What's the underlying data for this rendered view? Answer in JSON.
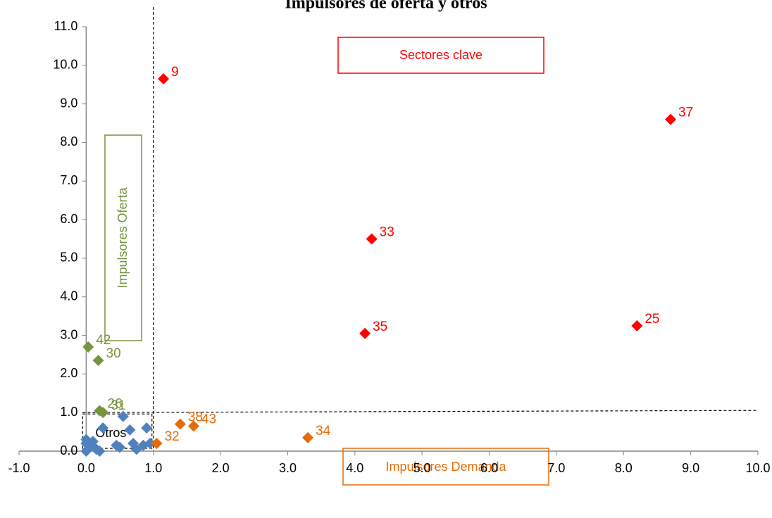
{
  "chart_data": {
    "type": "scatter",
    "title": "Impulsores de oferta y otros",
    "xlim": [
      -1,
      10
    ],
    "ylim": [
      0,
      11
    ],
    "xticks": [
      {
        "value": -1,
        "label": "-1.0"
      },
      {
        "value": 0,
        "label": "0.0"
      },
      {
        "value": 1,
        "label": "1.0"
      },
      {
        "value": 2,
        "label": "2.0"
      },
      {
        "value": 3,
        "label": "3.0"
      },
      {
        "value": 4,
        "label": "4.0"
      },
      {
        "value": 5,
        "label": "5.0"
      },
      {
        "value": 6,
        "label": "6.0"
      },
      {
        "value": 7,
        "label": "7.0"
      },
      {
        "value": 8,
        "label": "8.0"
      },
      {
        "value": 9,
        "label": "9.0"
      },
      {
        "value": 10,
        "label": "10.0"
      }
    ],
    "yticks": [
      {
        "value": 0,
        "label": "0.0"
      },
      {
        "value": 1,
        "label": "1.0"
      },
      {
        "value": 2,
        "label": "2.0"
      },
      {
        "value": 3,
        "label": "3.0"
      },
      {
        "value": 4,
        "label": "4.0"
      },
      {
        "value": 5,
        "label": "5.0"
      },
      {
        "value": 6,
        "label": "6.0"
      },
      {
        "value": 7,
        "label": "7.0"
      },
      {
        "value": 8,
        "label": "8.0"
      },
      {
        "value": 9,
        "label": "9.0"
      },
      {
        "value": 10,
        "label": "10.0"
      },
      {
        "value": 11,
        "label": "11.0"
      }
    ],
    "grid": false,
    "reference_lines": {
      "x": 1,
      "y": 1
    },
    "annotations": [
      "Sectores clave",
      "Impulsores Oferta",
      "Impulsores Demanda",
      "Otros"
    ],
    "series": [
      {
        "color": "#4f81bd",
        "x": [
          0,
          0,
          0,
          0.05,
          0.1,
          0.15,
          0.2,
          0.25,
          0.45,
          0.5,
          0.55,
          0.65,
          0.7,
          0.75,
          0.85,
          0.9,
          0.95
        ],
        "values": [
          0.3,
          0.2,
          0,
          0.1,
          0.25,
          0.05,
          0,
          0.6,
          0.15,
          0.1,
          0.9,
          0.55,
          0.2,
          0.05,
          0.15,
          0.6,
          0.2
        ]
      },
      {
        "color": "#77933c",
        "x": [
          0.03,
          0.18,
          0.2,
          0.25
        ],
        "values": [
          2.7,
          2.35,
          1.05,
          1.0
        ],
        "labels": [
          "42",
          "30",
          "26",
          "31"
        ]
      },
      {
        "color": "#e46c0a",
        "x": [
          1.4,
          1.6,
          3.3,
          1.05
        ],
        "values": [
          0.7,
          0.65,
          0.35,
          0.2
        ],
        "labels": [
          "38",
          "43",
          "34",
          "32"
        ]
      },
      {
        "color": "#ff0000",
        "x": [
          1.15,
          8.7,
          4.25,
          4.15,
          8.2
        ],
        "values": [
          9.65,
          8.6,
          5.5,
          3.05,
          3.25
        ],
        "labels": [
          "9",
          "37",
          "33",
          "35",
          "25"
        ]
      }
    ]
  }
}
